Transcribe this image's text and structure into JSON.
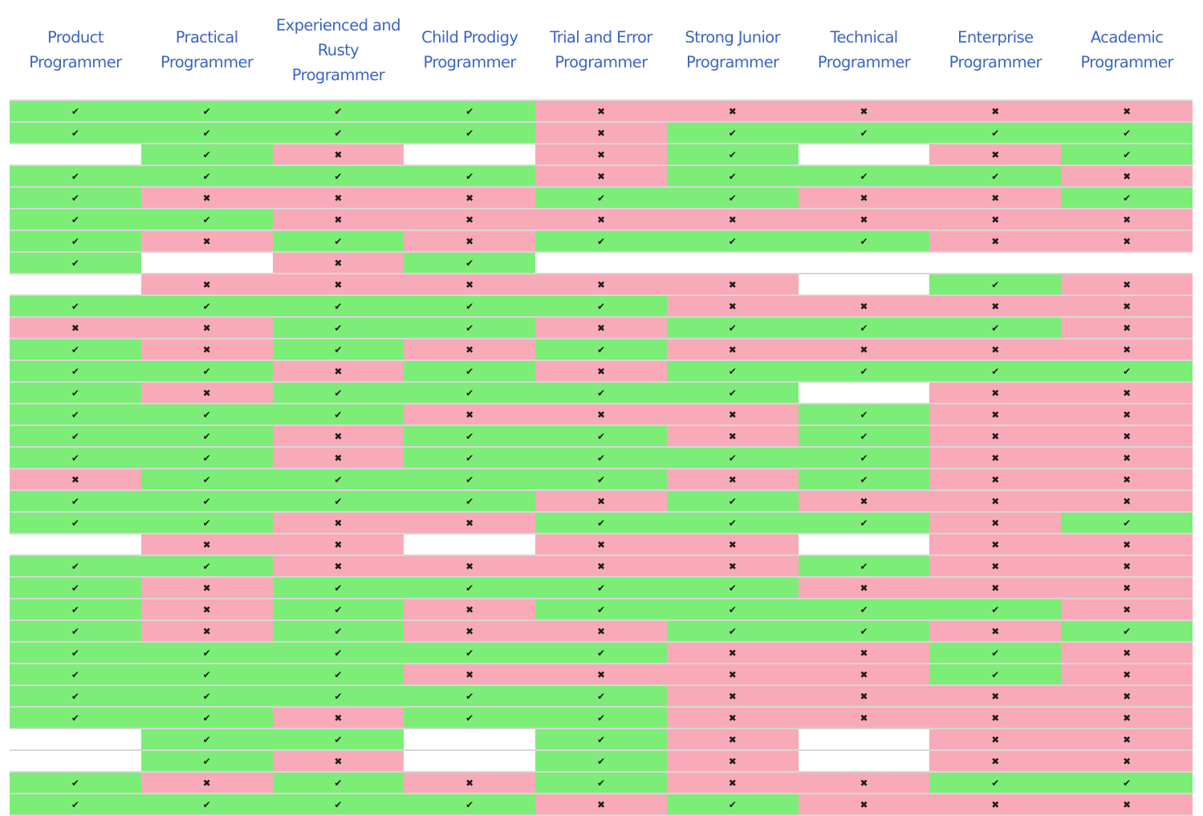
{
  "columns": [
    "Product\nProgrammer",
    "Practical\nProgrammer",
    "Experienced and\nRusty\nProgrammer",
    "Child Prodigy\nProgrammer",
    "Trial and Error\nProgrammer",
    "Strong Junior\nProgrammer",
    "Technical\nProgrammer",
    "Enterprise\nProgrammer",
    "Academic\nProgrammer"
  ],
  "symbols": {
    "y": "✔",
    "n": "✖",
    "e": ""
  },
  "colors": {
    "yes": "#7ced77",
    "no": "#f9aab9",
    "empty": "#ffffff",
    "header": "#3a64c8"
  },
  "rows": [
    [
      "y",
      "y",
      "y",
      "y",
      "n",
      "n",
      "n",
      "n",
      "n"
    ],
    [
      "y",
      "y",
      "y",
      "y",
      "n",
      "y",
      "y",
      "y",
      "y"
    ],
    [
      "e",
      "y",
      "n",
      "e",
      "n",
      "y",
      "e",
      "n",
      "y"
    ],
    [
      "y",
      "y",
      "y",
      "y",
      "n",
      "y",
      "y",
      "y",
      "n"
    ],
    [
      "y",
      "n",
      "n",
      "n",
      "y",
      "y",
      "n",
      "n",
      "y"
    ],
    [
      "y",
      "y",
      "n",
      "n",
      "n",
      "n",
      "n",
      "n",
      "n"
    ],
    [
      "y",
      "n",
      "y",
      "n",
      "y",
      "y",
      "y",
      "n",
      "n"
    ],
    [
      "y",
      "e",
      "n",
      "y",
      "e",
      "e",
      "e",
      "e",
      "e"
    ],
    [
      "e",
      "n",
      "n",
      "n",
      "n",
      "n",
      "e",
      "y",
      "n"
    ],
    [
      "y",
      "y",
      "y",
      "y",
      "y",
      "n",
      "n",
      "n",
      "n"
    ],
    [
      "n",
      "n",
      "y",
      "y",
      "n",
      "y",
      "y",
      "y",
      "n"
    ],
    [
      "y",
      "n",
      "y",
      "n",
      "y",
      "n",
      "n",
      "n",
      "n"
    ],
    [
      "y",
      "y",
      "n",
      "y",
      "n",
      "y",
      "y",
      "y",
      "y"
    ],
    [
      "y",
      "n",
      "y",
      "y",
      "y",
      "y",
      "e",
      "n",
      "n"
    ],
    [
      "y",
      "y",
      "y",
      "n",
      "n",
      "n",
      "y",
      "n",
      "n"
    ],
    [
      "y",
      "y",
      "n",
      "y",
      "y",
      "n",
      "y",
      "n",
      "n"
    ],
    [
      "y",
      "y",
      "n",
      "y",
      "y",
      "y",
      "y",
      "n",
      "n"
    ],
    [
      "n",
      "y",
      "y",
      "y",
      "y",
      "n",
      "y",
      "n",
      "n"
    ],
    [
      "y",
      "y",
      "y",
      "y",
      "n",
      "y",
      "n",
      "n",
      "n"
    ],
    [
      "y",
      "y",
      "n",
      "n",
      "y",
      "y",
      "y",
      "n",
      "y"
    ],
    [
      "e",
      "n",
      "n",
      "e",
      "n",
      "n",
      "e",
      "n",
      "n"
    ],
    [
      "y",
      "y",
      "n",
      "n",
      "n",
      "n",
      "y",
      "n",
      "n"
    ],
    [
      "y",
      "n",
      "y",
      "y",
      "y",
      "y",
      "n",
      "n",
      "n"
    ],
    [
      "y",
      "n",
      "y",
      "n",
      "y",
      "y",
      "y",
      "y",
      "n"
    ],
    [
      "y",
      "n",
      "y",
      "n",
      "n",
      "y",
      "y",
      "n",
      "y"
    ],
    [
      "y",
      "y",
      "y",
      "y",
      "y",
      "n",
      "n",
      "y",
      "n"
    ],
    [
      "y",
      "y",
      "y",
      "n",
      "n",
      "n",
      "n",
      "y",
      "n"
    ],
    [
      "y",
      "y",
      "y",
      "y",
      "y",
      "n",
      "n",
      "n",
      "n"
    ],
    [
      "y",
      "y",
      "n",
      "y",
      "y",
      "n",
      "n",
      "n",
      "n"
    ],
    [
      "e",
      "y",
      "y",
      "e",
      "y",
      "n",
      "e",
      "n",
      "n"
    ],
    [
      "e",
      "y",
      "n",
      "e",
      "y",
      "n",
      "e",
      "n",
      "n"
    ],
    [
      "y",
      "n",
      "y",
      "n",
      "y",
      "n",
      "n",
      "y",
      "y"
    ],
    [
      "y",
      "y",
      "y",
      "y",
      "n",
      "y",
      "n",
      "n",
      "n"
    ]
  ]
}
